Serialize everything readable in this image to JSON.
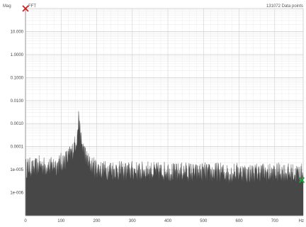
{
  "header": {
    "units_label": "Mag",
    "fft_label": "FFT",
    "sample_count_label": "131072 Data points"
  },
  "chart_data": {
    "type": "area",
    "title": "",
    "xlabel": "",
    "ylabel": "",
    "log_y": true,
    "grid": true,
    "xlim": [
      0,
      780
    ],
    "ylim": [
      1e-07,
      100
    ],
    "x_ticks": [
      0,
      100,
      200,
      300,
      400,
      500,
      600,
      700
    ],
    "x_tick_labels": [
      "0",
      "100",
      "200",
      "300",
      "400",
      "500",
      "600",
      "700"
    ],
    "x_end_label": "Hz",
    "y_ticks": [
      10,
      1,
      0.1,
      0.01,
      0.001,
      0.0001,
      1e-05,
      1e-06
    ],
    "y_tick_labels": [
      "10.000",
      "1.0000",
      "0.1000",
      "0.0100",
      "0.0010",
      "0.0001",
      "1e-005",
      "1e-006"
    ],
    "series": [
      {
        "color": "#474747",
        "x": [
          0,
          10,
          20,
          30,
          40,
          50,
          60,
          70,
          80,
          90,
          100,
          110,
          120,
          130,
          140,
          145,
          148,
          150,
          152,
          155,
          160,
          170,
          180,
          190,
          200,
          220,
          240,
          260,
          280,
          300,
          320,
          340,
          360,
          380,
          400,
          420,
          440,
          460,
          480,
          500,
          520,
          540,
          560,
          580,
          600,
          620,
          640,
          660,
          680,
          700,
          720,
          740,
          760,
          780
        ],
        "y": [
          1e-05,
          1.2e-05,
          9e-06,
          1.1e-05,
          1.4e-05,
          1.2e-05,
          1.3e-05,
          1.1e-05,
          1.5e-05,
          1.3e-05,
          1.8e-05,
          2.2e-05,
          3e-05,
          5e-05,
          0.00012,
          0.00025,
          0.0006,
          0.003,
          0.0005,
          0.0002,
          9e-05,
          3e-05,
          1.5e-05,
          1.2e-05,
          1e-05,
          8e-06,
          9e-06,
          8e-06,
          7e-06,
          8e-06,
          7e-06,
          8e-06,
          7e-06,
          7e-06,
          8e-06,
          6e-06,
          7e-06,
          7e-06,
          6e-06,
          7e-06,
          6e-06,
          7e-06,
          6e-06,
          6e-06,
          7e-06,
          6e-06,
          6e-06,
          7e-06,
          6e-06,
          6e-06,
          7e-06,
          6e-06,
          6e-06,
          6e-06
        ]
      }
    ]
  },
  "cursors": {
    "start_color": "#cc2222",
    "end_color": "#1aa33a"
  }
}
